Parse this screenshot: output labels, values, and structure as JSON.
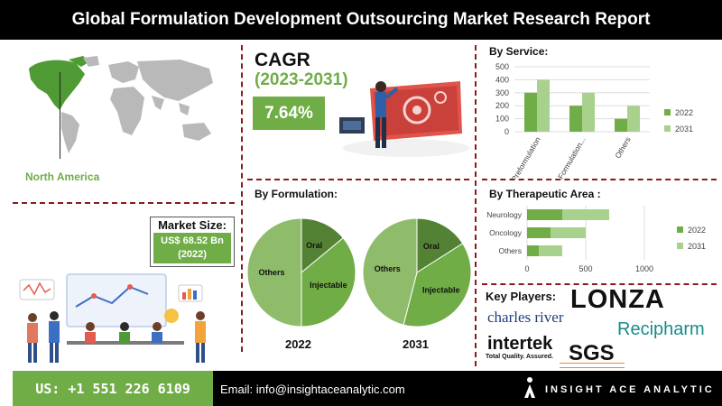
{
  "header": {
    "title": "Global Formulation Development Outsourcing Market Research Report"
  },
  "region": {
    "label": "North America"
  },
  "market_size": {
    "label": "Market Size:",
    "value": "US$ 68.52 Bn",
    "year": "(2022)"
  },
  "cagr": {
    "title": "CAGR",
    "years": "(2023-2031)",
    "value": "7.64%"
  },
  "formulation": {
    "title": "By Formulation:"
  },
  "service": {
    "title": "By Service:"
  },
  "therapeutic": {
    "title": "By Therapeutic Area :"
  },
  "key_players": {
    "title": "Key Players:",
    "logos": [
      "LONZA",
      "charles river",
      "Recipharm",
      "intertek",
      "Total Quality. Assured.",
      "SGS"
    ]
  },
  "footer": {
    "phone": "US: +1 551 226 6109",
    "email": "Email: info@insightaceanalytic.com",
    "brand": "INSIGHT ACE ANALYTIC"
  },
  "colors": {
    "accent_green": "#70ad47",
    "dark_green": "#548235",
    "light_green": "#a9d18e",
    "pie_light": "#8fbc6a",
    "divider": "#8b1a1a"
  },
  "chart_data": [
    {
      "type": "bar",
      "title": "By Service:",
      "categories": [
        "Preformulation",
        "Formulation...",
        "Others"
      ],
      "series": [
        {
          "name": "2022",
          "values": [
            300,
            200,
            100
          ]
        },
        {
          "name": "2031",
          "values": [
            400,
            300,
            200
          ]
        }
      ],
      "ylim": [
        0,
        500
      ],
      "yticks": [
        0,
        100,
        200,
        300,
        400,
        500
      ],
      "legend": "right"
    },
    {
      "type": "bar",
      "orientation": "horizontal",
      "stacked": true,
      "title": "By Therapeutic Area :",
      "categories": [
        "Neurology",
        "Oncology",
        "Others"
      ],
      "series": [
        {
          "name": "2022",
          "values": [
            300,
            200,
            100
          ]
        },
        {
          "name": "2031",
          "values": [
            400,
            300,
            200
          ]
        }
      ],
      "xlim": [
        0,
        1000
      ],
      "xticks": [
        0,
        500,
        1000
      ],
      "legend": "right"
    },
    {
      "type": "pie",
      "title": "By Formulation:",
      "year": "2022",
      "labels": [
        "Oral",
        "Injectable",
        "Others"
      ],
      "values": [
        14,
        36,
        50
      ]
    },
    {
      "type": "pie",
      "title": "By Formulation:",
      "year": "2031",
      "labels": [
        "Oral",
        "Injectable",
        "Others"
      ],
      "values": [
        16,
        38,
        46
      ]
    }
  ]
}
